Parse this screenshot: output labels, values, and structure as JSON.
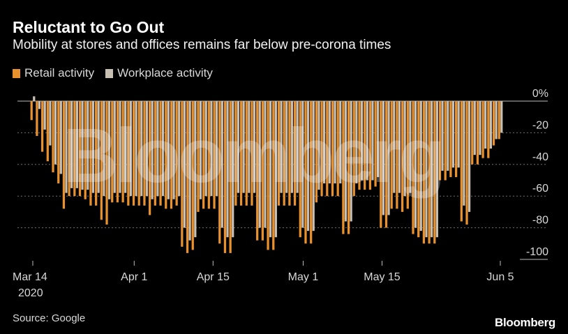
{
  "header": {
    "title": "Reluctant to Go Out",
    "subtitle": "Mobility at stores and offices remains far below pre-corona times"
  },
  "legend": {
    "retail_label": "Retail activity",
    "workplace_label": "Workplace activity"
  },
  "footer": {
    "source": "Source: Google",
    "brand": "Bloomberg"
  },
  "watermark": "Bloomberg",
  "colors": {
    "retail": "#e8912d",
    "workplace": "#c9c0b4",
    "background": "#000000"
  },
  "chart_data": {
    "type": "bar",
    "x_start": "2020-03-14",
    "x_end": "2020-06-05",
    "ylim": [
      -100,
      0
    ],
    "y_ticks": [
      {
        "value": 0,
        "label": "0%"
      },
      {
        "value": -20,
        "label": "-20"
      },
      {
        "value": -40,
        "label": "-40"
      },
      {
        "value": -60,
        "label": "-60"
      },
      {
        "value": -80,
        "label": "-80"
      },
      {
        "value": -100,
        "label": "-100"
      }
    ],
    "x_ticks": [
      {
        "date": "2020-03-14",
        "label": "Mar 14",
        "sublabel": "2020"
      },
      {
        "date": "2020-04-01",
        "label": "Apr 1"
      },
      {
        "date": "2020-04-15",
        "label": "Apr 15"
      },
      {
        "date": "2020-05-01",
        "label": "May 1"
      },
      {
        "date": "2020-05-15",
        "label": "May 15"
      },
      {
        "date": "2020-06-05",
        "label": "Jun 5"
      }
    ],
    "grid": true,
    "legend_position": "top-left",
    "series": [
      {
        "name": "Retail activity",
        "values": [
          -12,
          -22,
          -32,
          -38,
          -45,
          -52,
          -68,
          -60,
          -60,
          -60,
          -62,
          -66,
          -66,
          -75,
          -78,
          -64,
          -64,
          -64,
          -66,
          -66,
          -66,
          -66,
          -72,
          -66,
          -66,
          -68,
          -68,
          -66,
          -92,
          -96,
          -94,
          -70,
          -68,
          -68,
          -68,
          -90,
          -96,
          -96,
          -66,
          -66,
          -66,
          -66,
          -88,
          -88,
          -94,
          -94,
          -66,
          -66,
          -66,
          -66,
          -86,
          -90,
          -90,
          -64,
          -60,
          -60,
          -60,
          -60,
          -84,
          -84,
          -60,
          -56,
          -56,
          -56,
          -54,
          -80,
          -80,
          -68,
          -68,
          -70,
          -68,
          -84,
          -86,
          -90,
          -90,
          -90,
          -50,
          -50,
          -48,
          -48,
          -76,
          -78,
          -40,
          -40,
          -36,
          -36,
          -28,
          -24
        ]
      },
      {
        "name": "Workplace activity",
        "values": [
          3,
          -5,
          -18,
          -28,
          -40,
          -46,
          -58,
          -55,
          -55,
          -56,
          -56,
          -58,
          -58,
          -60,
          -62,
          -58,
          -58,
          -58,
          -60,
          -60,
          -60,
          -60,
          -62,
          -60,
          -60,
          -62,
          -62,
          -60,
          -80,
          -88,
          -86,
          -62,
          -60,
          -60,
          -60,
          -80,
          -86,
          -86,
          -58,
          -58,
          -58,
          -58,
          -80,
          -80,
          -86,
          -86,
          -58,
          -58,
          -58,
          -58,
          -80,
          -82,
          -82,
          -56,
          -52,
          -52,
          -52,
          -52,
          -76,
          -76,
          -52,
          -50,
          -50,
          -50,
          -48,
          -72,
          -72,
          -58,
          -58,
          -60,
          -58,
          -80,
          -82,
          -86,
          -86,
          -86,
          -44,
          -44,
          -42,
          -42,
          -66,
          -70,
          -34,
          -34,
          -30,
          -30,
          -24,
          -20
        ]
      }
    ]
  }
}
